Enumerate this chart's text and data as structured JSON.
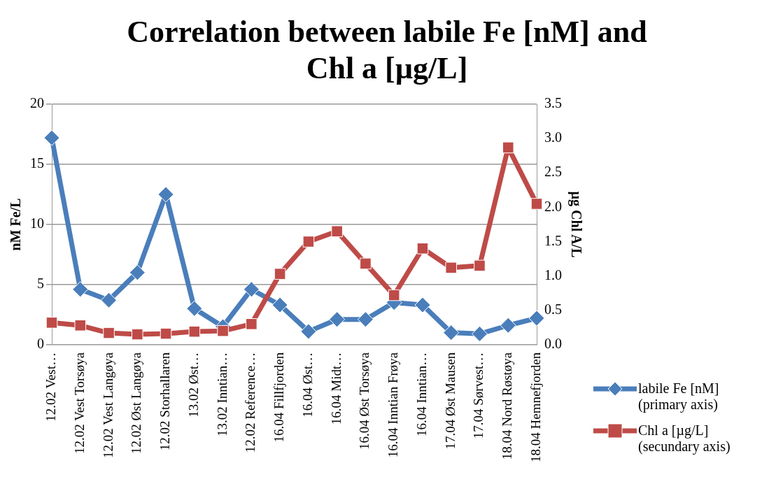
{
  "chart_data": {
    "type": "line",
    "title": "Correlation between labile Fe [nM] and Chl a [µg/L]",
    "ylabel": "nM Fe/L",
    "y2label": "µg Chl A/L",
    "categories": [
      "12.02 Vest…",
      "12.02 Vest Torsøya",
      "12.02 Vest Langøya",
      "12.02 Øst Langøya",
      "12.02 Storhallaren",
      "13.02 Øst…",
      "13.02 Inntian…",
      "12.02 Reference…",
      "16.04 Fillfjorden",
      "16.04 Øst…",
      "16.04 Midt…",
      "16.04 Øst Torsøya",
      "16.04 Inntian Frøya",
      "16.04 Inntian…",
      "17.04 Øst Mausen",
      "17.04 Sørvest…",
      "18.04 Nord Røstøya",
      "18.04 Hemnefjorden"
    ],
    "series": [
      {
        "name": "labile Fe [nM] (primary axis)",
        "color": "#4a7ebb",
        "marker": "diamond",
        "values": [
          17.2,
          4.6,
          3.7,
          6.0,
          12.5,
          3.0,
          1.5,
          4.6,
          3.3,
          1.1,
          2.1,
          2.1,
          3.5,
          3.3,
          1.0,
          0.9,
          1.6,
          2.2
        ]
      },
      {
        "name": "Chl a [µg/L] (secundary axis)",
        "color": "#be4b48",
        "marker": "square",
        "axis": "y2",
        "values": [
          0.32,
          0.28,
          0.17,
          0.15,
          0.16,
          0.19,
          0.2,
          0.3,
          1.03,
          1.5,
          1.65,
          1.18,
          0.72,
          1.4,
          1.12,
          1.15,
          2.87,
          2.05
        ]
      }
    ],
    "ylim": [
      0,
      20
    ],
    "yticks": [
      0,
      5,
      10,
      15,
      20
    ],
    "y2lim": [
      0,
      3.5
    ],
    "y2ticks": [
      {
        "value": 0,
        "label": "0.0"
      },
      {
        "value": 0.5,
        "label": "0.5"
      },
      {
        "value": 1,
        "label": "1.0"
      },
      {
        "value": 1.5,
        "label": "1.5"
      },
      {
        "value": 2,
        "label": "2.0"
      },
      {
        "value": 2.5,
        "label": "2.5"
      },
      {
        "value": 3,
        "label": "3.0"
      },
      {
        "value": 3.5,
        "label": "3.5"
      }
    ],
    "grid": "y",
    "legend": "right"
  }
}
